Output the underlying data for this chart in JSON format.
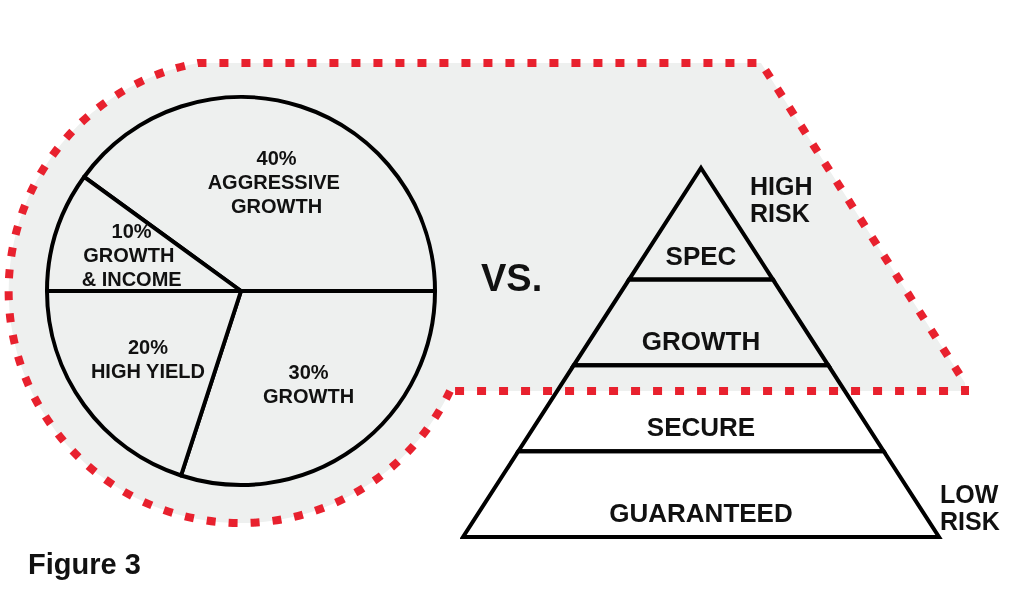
{
  "chart_data": [
    {
      "type": "pie",
      "categories": [
        "AGGRESSIVE GROWTH",
        "GROWTH",
        "HIGH YIELD",
        "GROWTH & INCOME"
      ],
      "values": [
        40,
        30,
        20,
        10
      ],
      "value_labels": [
        "40%",
        "30%",
        "20%",
        "10%"
      ],
      "colors": [
        "#eef0ef",
        "#eef0ef",
        "#eef0ef",
        "#eef0ef"
      ],
      "annotations": [
        "Figure 3"
      ]
    },
    {
      "type": "other",
      "categories": [
        "SPEC",
        "GROWTH",
        "SECURE",
        "GUARANTEED"
      ],
      "annotations": [
        "VS.",
        "HIGH RISK",
        "LOW RISK"
      ]
    }
  ]
}
